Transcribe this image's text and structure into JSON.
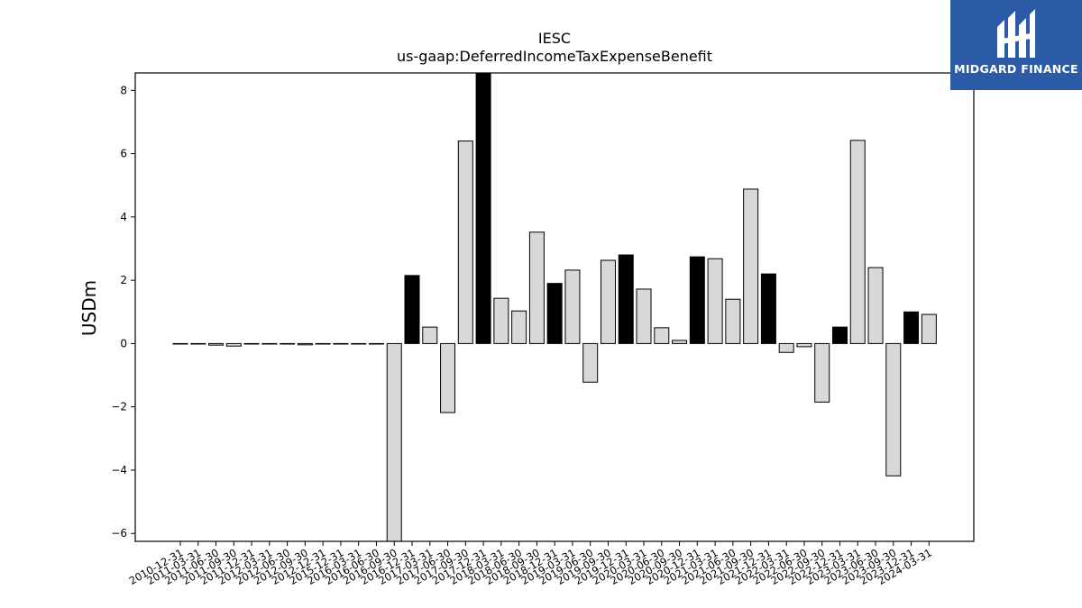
{
  "chart_data": {
    "type": "bar",
    "title": "IESC",
    "subtitle": "us-gaap:DeferredIncomeTaxExpenseBenefit",
    "xlabel": "",
    "ylabel": "USDm",
    "ylim": [
      -6.25,
      8.55
    ],
    "yticks": [
      -6,
      -4,
      -2,
      0,
      2,
      4,
      6,
      8
    ],
    "ytick_labels": [
      "−6",
      "−4",
      "−2",
      "0",
      "2",
      "4",
      "6",
      "8"
    ],
    "grid": false,
    "categories": [
      "2010-12-31",
      "2011-03-31",
      "2011-06-30",
      "2011-09-30",
      "2011-12-31",
      "2012-03-31",
      "2012-06-30",
      "2012-09-30",
      "2012-12-31",
      "2015-12-31",
      "2016-03-31",
      "2016-06-30",
      "2016-09-30",
      "2016-12-31",
      "2017-03-31",
      "2017-06-30",
      "2017-09-30",
      "2017-12-31",
      "2018-03-31",
      "2018-06-30",
      "2018-09-30",
      "2018-12-31",
      "2019-03-31",
      "2019-06-30",
      "2019-09-30",
      "2019-12-31",
      "2020-03-31",
      "2020-06-30",
      "2020-09-30",
      "2020-12-31",
      "2021-03-31",
      "2021-06-30",
      "2021-09-30",
      "2021-12-31",
      "2022-03-31",
      "2022-06-30",
      "2022-09-30",
      "2022-12-31",
      "2023-03-31",
      "2023-06-30",
      "2023-09-30",
      "2023-12-31",
      "2024-03-31"
    ],
    "values": [
      0.0,
      0.0,
      -0.05,
      -0.08,
      0.0,
      0.0,
      0.0,
      -0.04,
      0.0,
      0.0,
      0.0,
      0.0,
      -6.3,
      2.15,
      0.52,
      -2.18,
      6.4,
      8.6,
      1.43,
      1.03,
      3.52,
      1.9,
      2.32,
      -1.22,
      2.63,
      2.8,
      1.72,
      0.5,
      0.1,
      2.74,
      2.68,
      1.4,
      4.88,
      2.2,
      -0.28,
      -0.1,
      -1.85,
      0.52,
      6.42,
      2.4,
      -4.18,
      1.0,
      0.92
    ],
    "highlight": [
      false,
      false,
      false,
      false,
      false,
      false,
      false,
      false,
      false,
      false,
      false,
      false,
      false,
      true,
      false,
      false,
      false,
      true,
      false,
      false,
      false,
      true,
      false,
      false,
      false,
      true,
      false,
      false,
      false,
      true,
      false,
      false,
      false,
      true,
      false,
      false,
      false,
      true,
      false,
      false,
      false,
      true,
      false
    ],
    "colors": {
      "bar": "#d8d8d8",
      "highlight": "#000000",
      "edge": "#000000"
    }
  },
  "logo": {
    "text": "MIDGARD FINANCE",
    "background": "#2b5aa6"
  }
}
